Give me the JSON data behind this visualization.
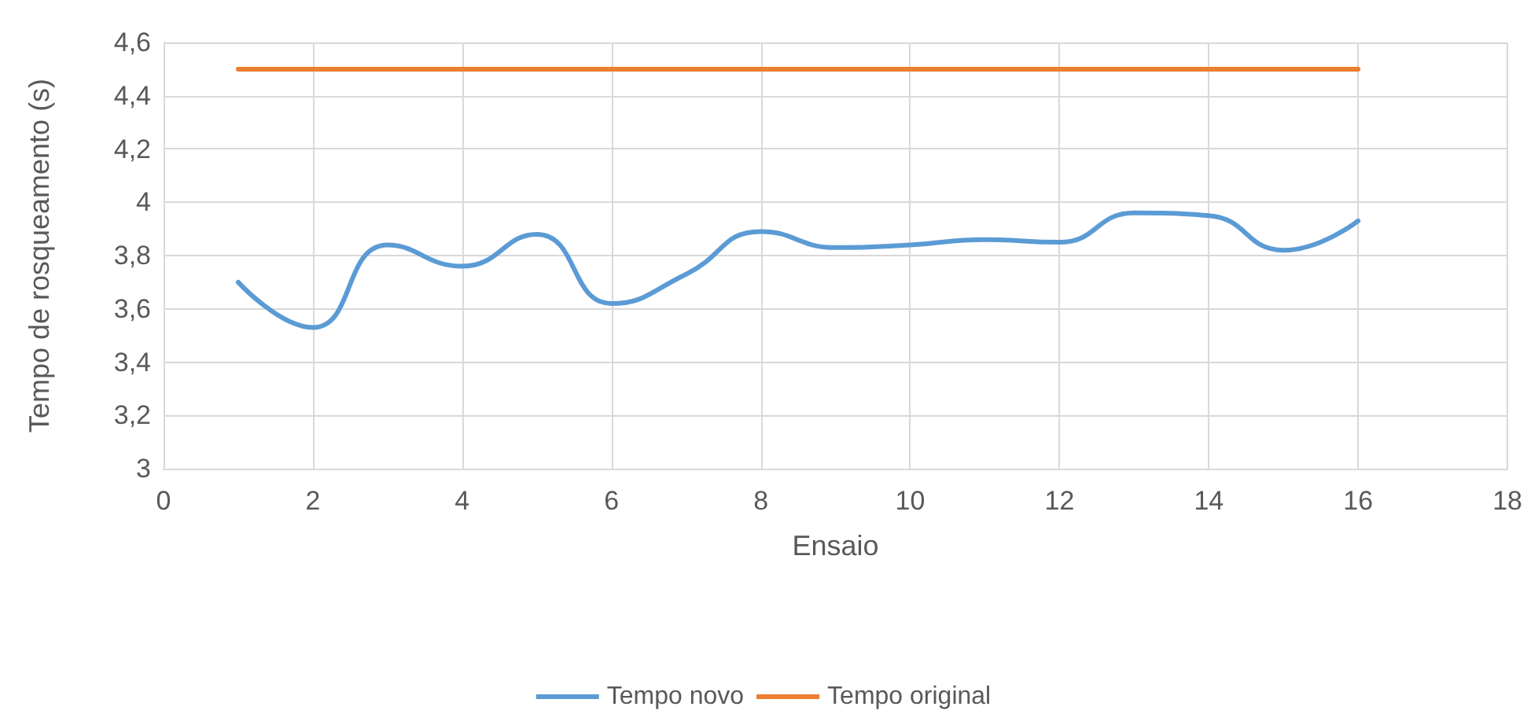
{
  "chart_data": {
    "type": "line",
    "xlabel": "Ensaio",
    "ylabel": "Tempo de rosqueamento (s)",
    "x": [
      1,
      2,
      3,
      4,
      5,
      6,
      7,
      8,
      9,
      10,
      11,
      12,
      13,
      14,
      15,
      16
    ],
    "series": [
      {
        "name": "Tempo novo",
        "color": "#5b9bd5",
        "values": [
          3.7,
          3.53,
          3.84,
          3.76,
          3.88,
          3.62,
          3.73,
          3.89,
          3.83,
          3.84,
          3.86,
          3.85,
          3.96,
          3.95,
          3.82,
          3.93
        ]
      },
      {
        "name": "Tempo original",
        "color": "#ed7d31",
        "values": [
          4.5,
          4.5,
          4.5,
          4.5,
          4.5,
          4.5,
          4.5,
          4.5,
          4.5,
          4.5,
          4.5,
          4.5,
          4.5,
          4.5,
          4.5,
          4.5
        ]
      }
    ],
    "xlim": [
      0,
      18
    ],
    "xticks": [
      0,
      2,
      4,
      6,
      8,
      10,
      12,
      14,
      16,
      18
    ],
    "ylim": [
      3,
      4.6
    ],
    "yticks": [
      3,
      {
        "value": 3.2,
        "label": "3,2"
      },
      {
        "value": 3.4,
        "label": "3,4"
      },
      {
        "value": 3.6,
        "label": "3,6"
      },
      {
        "value": 3.8,
        "label": "3,8"
      },
      4,
      {
        "value": 4.2,
        "label": "4,2"
      },
      {
        "value": 4.4,
        "label": "4,4"
      },
      {
        "value": 4.6,
        "label": "4,6"
      }
    ],
    "grid": true,
    "legend": "bottom",
    "marker": "none",
    "line_style": "solid"
  }
}
